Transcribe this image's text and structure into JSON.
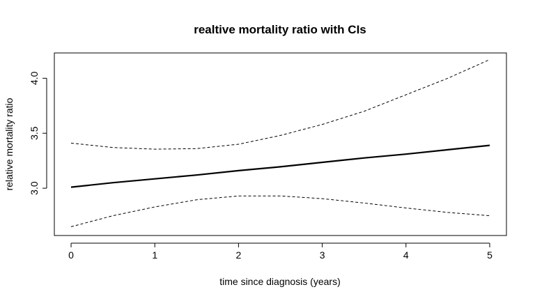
{
  "chart_data": {
    "type": "line",
    "title": "realtive mortality ratio with CIs",
    "xlabel": "time since diagnosis (years)",
    "ylabel": "relative mortality ratio",
    "xlim": [
      -0.2,
      5.2
    ],
    "ylim": [
      2.57,
      4.23
    ],
    "xticks": [
      0,
      1,
      2,
      3,
      4,
      5
    ],
    "yticks": [
      3.0,
      3.5,
      4.0
    ],
    "xtick_labels": [
      "0",
      "1",
      "2",
      "3",
      "4",
      "5"
    ],
    "ytick_labels": [
      "3.0",
      "3.5",
      "4.0"
    ],
    "grid": false,
    "legend": "none",
    "x": [
      0,
      0.5,
      1,
      1.5,
      2,
      2.5,
      3,
      3.5,
      4,
      4.5,
      5
    ],
    "series": [
      {
        "style": "solid",
        "values": [
          3.01,
          3.05,
          3.085,
          3.12,
          3.16,
          3.195,
          3.235,
          3.275,
          3.31,
          3.35,
          3.39
        ]
      },
      {
        "style": "dashed",
        "values": [
          3.41,
          3.37,
          3.355,
          3.36,
          3.4,
          3.48,
          3.58,
          3.7,
          3.85,
          4.0,
          4.17
        ]
      },
      {
        "style": "dashed",
        "values": [
          2.65,
          2.75,
          2.83,
          2.895,
          2.93,
          2.93,
          2.905,
          2.865,
          2.82,
          2.78,
          2.75
        ]
      }
    ]
  }
}
